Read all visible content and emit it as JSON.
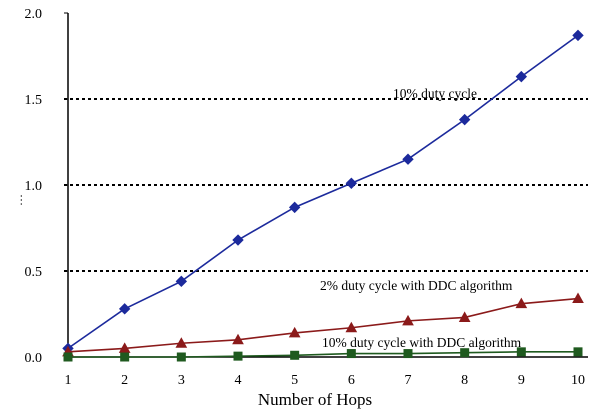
{
  "chart_data": {
    "type": "line",
    "title": "",
    "xlabel": "Number of Hops",
    "ylabel": "…",
    "x": [
      1,
      2,
      3,
      4,
      5,
      6,
      7,
      8,
      9,
      10
    ],
    "xlim": [
      1,
      10
    ],
    "ylim": [
      0,
      2.0
    ],
    "y_ticks": [
      "0.0",
      "0.5",
      "1.0",
      "1.5",
      "2.0"
    ],
    "x_ticks": [
      "1",
      "2",
      "3",
      "4",
      "5",
      "6",
      "7",
      "8",
      "9",
      "10"
    ],
    "grid": "dotted horizontal at 0.5, 1.0, 1.5",
    "series": [
      {
        "label": "10% duty cycle",
        "color": "#1c2a9c",
        "marker": "diamond",
        "values": [
          0.05,
          0.28,
          0.44,
          0.68,
          0.87,
          1.01,
          1.15,
          1.38,
          1.63,
          1.87
        ]
      },
      {
        "label": "2% duty cycle with DDC algorithm",
        "color": "#8b1a1a",
        "marker": "triangle",
        "values": [
          0.03,
          0.05,
          0.08,
          0.1,
          0.14,
          0.17,
          0.21,
          0.23,
          0.31,
          0.34
        ]
      },
      {
        "label": "10% duty cycle with DDC algorithm",
        "color": "#1f5a1f",
        "marker": "square",
        "values": [
          0.0,
          0.0,
          0.0,
          0.005,
          0.01,
          0.02,
          0.02,
          0.025,
          0.03,
          0.03
        ]
      }
    ]
  }
}
